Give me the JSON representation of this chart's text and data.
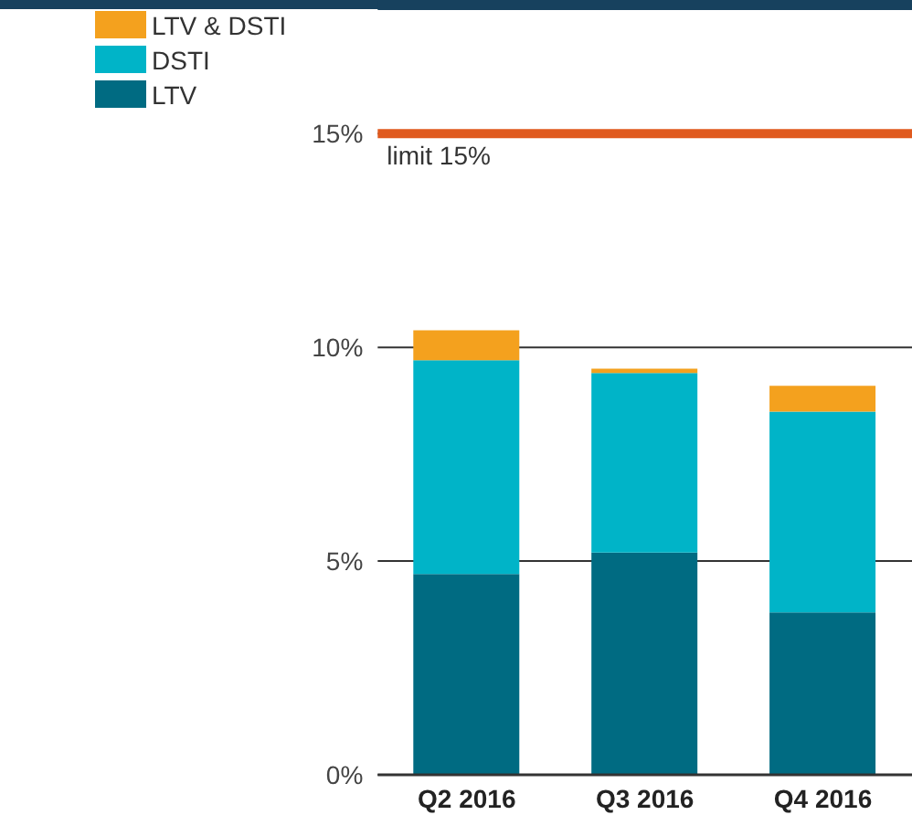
{
  "chart_data": {
    "type": "bar",
    "stacked": true,
    "categories": [
      "Q2 2016",
      "Q3 2016",
      "Q4 2016"
    ],
    "series": [
      {
        "name": "LTV",
        "color": "#006b82",
        "values": [
          4.7,
          5.2,
          3.8
        ]
      },
      {
        "name": "DSTI",
        "color": "#00b4c8",
        "values": [
          5.0,
          4.2,
          4.7
        ]
      },
      {
        "name": "LTV & DSTI",
        "color": "#f4a11e",
        "values": [
          0.7,
          0.1,
          0.6
        ]
      }
    ],
    "ylim": [
      0,
      18
    ],
    "yticks": [
      {
        "value": 0,
        "label": "0%"
      },
      {
        "value": 5,
        "label": "5%"
      },
      {
        "value": 10,
        "label": "10%"
      },
      {
        "value": 15,
        "label": "15%"
      }
    ],
    "grid": "y",
    "legend": "top left",
    "ref_lines": [
      {
        "axis": "y",
        "value": 15,
        "label": "limit 15%",
        "color": "#e05a1e"
      }
    ]
  }
}
